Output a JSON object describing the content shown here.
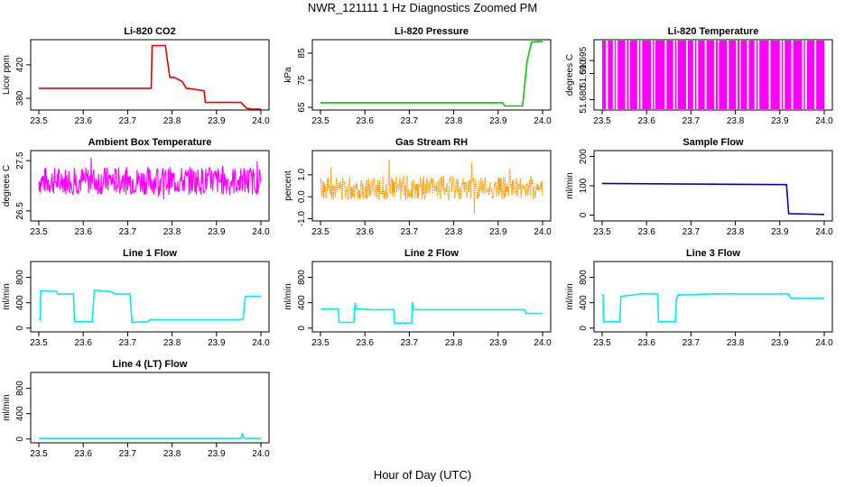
{
  "title": "NWR_121111  1 Hz Diagnostics Zoomed PM",
  "xlabel": "Hour of Day (UTC)",
  "colors": {
    "red": "#ee0000",
    "green": "#00cc00",
    "magenta": "#ff00ff",
    "orange": "#ff9900",
    "blue": "#0000cc",
    "cyan": "#00eeee"
  },
  "chart_data": [
    {
      "type": "line",
      "title": "Li-820 CO2",
      "ylabel": "Licor ppm",
      "color": "red",
      "xlim": [
        23.5,
        24.0
      ],
      "ylim": [
        366,
        450
      ],
      "xticks": [
        "23.5",
        "23.6",
        "23.7",
        "23.8",
        "23.9",
        "24.0"
      ],
      "yticks": [
        {
          "v": 380,
          "t": "380"
        },
        {
          "v": 420,
          "t": "420"
        }
      ],
      "series": [
        {
          "x": [
            23.5,
            23.753,
            23.755,
            23.763,
            23.77,
            23.785,
            23.795,
            23.805,
            23.823,
            23.832,
            23.835,
            23.872,
            23.875,
            23.955,
            23.968,
            23.98,
            24.0
          ],
          "y": [
            392,
            392,
            443,
            443,
            443,
            443,
            405,
            405,
            400,
            392,
            392,
            389,
            375,
            375,
            368,
            367,
            367
          ]
        }
      ]
    },
    {
      "type": "line",
      "title": "Li-820 Pressure",
      "ylabel": "kPa",
      "color": "green",
      "xlim": [
        23.5,
        24.0
      ],
      "ylim": [
        64,
        90
      ],
      "xticks": [
        "23.5",
        "23.6",
        "23.7",
        "23.8",
        "23.9",
        "24.0"
      ],
      "yticks": [
        {
          "v": 65,
          "t": "65"
        },
        {
          "v": 75,
          "t": "75"
        },
        {
          "v": 85,
          "t": "85"
        }
      ],
      "series": [
        {
          "x": [
            23.5,
            23.91,
            23.915,
            23.955,
            23.965,
            23.975,
            23.985,
            24.0
          ],
          "y": [
            66.7,
            66.7,
            65.5,
            65.5,
            82,
            89,
            89.3,
            89.3
          ]
        }
      ]
    },
    {
      "type": "bar",
      "title": "Li-820 Temperature",
      "ylabel": "degrees C",
      "color": "magenta",
      "xlim": [
        23.5,
        24.0
      ],
      "ylim": [
        51.676,
        51.703
      ],
      "xticks": [
        "23.5",
        "23.6",
        "23.7",
        "23.8",
        "23.9",
        "24.0"
      ],
      "yticks": [
        {
          "v": 51.68,
          "t": "51.680"
        },
        {
          "v": 51.69,
          "t": "51.690"
        },
        {
          "v": 51.695,
          "t": "51.695"
        }
      ],
      "bands": [
        [
          23.5,
          23.508
        ],
        [
          23.513,
          23.524
        ],
        [
          23.528,
          23.531
        ],
        [
          23.535,
          23.552
        ],
        [
          23.556,
          23.56
        ],
        [
          23.563,
          23.579
        ],
        [
          23.583,
          23.586
        ],
        [
          23.59,
          23.61
        ],
        [
          23.614,
          23.617
        ],
        [
          23.62,
          23.641
        ],
        [
          23.645,
          23.66
        ],
        [
          23.664,
          23.667
        ],
        [
          23.67,
          23.689
        ],
        [
          23.693,
          23.705
        ],
        [
          23.709,
          23.712
        ],
        [
          23.716,
          23.731
        ],
        [
          23.735,
          23.752
        ],
        [
          23.756,
          23.76
        ],
        [
          23.763,
          23.781
        ],
        [
          23.785,
          23.801
        ],
        [
          23.805,
          23.809
        ],
        [
          23.812,
          23.826
        ],
        [
          23.83,
          23.843
        ],
        [
          23.847,
          23.85
        ],
        [
          23.854,
          23.875
        ],
        [
          23.879,
          23.9
        ],
        [
          23.904,
          23.907
        ],
        [
          23.911,
          23.926
        ],
        [
          23.93,
          23.95
        ],
        [
          23.954,
          23.957
        ],
        [
          23.961,
          23.978
        ],
        [
          23.982,
          24.0
        ]
      ]
    },
    {
      "type": "line",
      "title": "Ambient Box Temperature",
      "ylabel": "degrees C",
      "color": "magenta",
      "xlim": [
        23.5,
        24.0
      ],
      "ylim": [
        26.3,
        27.7
      ],
      "xticks": [
        "23.5",
        "23.6",
        "23.7",
        "23.8",
        "23.9",
        "24.0"
      ],
      "yticks": [
        {
          "v": 26.5,
          "t": "26.5"
        },
        {
          "v": 27.5,
          "t": "27.5"
        }
      ],
      "noise": {
        "center": 27.1,
        "amplitude": 0.28,
        "spike": 0.5,
        "seed": 7
      }
    },
    {
      "type": "line",
      "title": "Gas Stream RH",
      "ylabel": "percent",
      "color": "orange",
      "xlim": [
        23.5,
        24.0
      ],
      "ylim": [
        -1.1,
        2.1
      ],
      "xticks": [
        "23.5",
        "23.6",
        "23.7",
        "23.8",
        "23.9",
        "24.0"
      ],
      "yticks": [
        {
          "v": -1.0,
          "t": "-1.0"
        },
        {
          "v": 0.0,
          "t": "0.0"
        },
        {
          "v": 1.0,
          "t": "1.0"
        }
      ],
      "noise": {
        "center": 0.4,
        "amplitude": 0.55,
        "spike": 1.3,
        "seed": 13
      }
    },
    {
      "type": "line",
      "title": "Sample Flow",
      "ylabel": "ml/min",
      "color": "blue",
      "xlim": [
        23.5,
        24.0
      ],
      "ylim": [
        -20,
        220
      ],
      "xticks": [
        "23.5",
        "23.6",
        "23.7",
        "23.8",
        "23.9",
        "24.0"
      ],
      "yticks": [
        {
          "v": 0,
          "t": "0"
        },
        {
          "v": 100,
          "t": "100"
        },
        {
          "v": 200,
          "t": "200"
        }
      ],
      "series": [
        {
          "x": [
            23.5,
            23.7,
            23.912,
            23.915,
            23.92,
            24.0
          ],
          "y": [
            108,
            106,
            104,
            104,
            5,
            2
          ]
        }
      ]
    },
    {
      "type": "line",
      "title": "Line 1 Flow",
      "ylabel": "ml/min",
      "color": "cyan",
      "xlim": [
        23.5,
        24.0
      ],
      "ylim": [
        -60,
        1050
      ],
      "xticks": [
        "23.5",
        "23.6",
        "23.7",
        "23.8",
        "23.9",
        "24.0"
      ],
      "yticks": [
        {
          "v": 0,
          "t": "0"
        },
        {
          "v": 400,
          "t": "400"
        },
        {
          "v": 800,
          "t": "800"
        }
      ],
      "series": [
        {
          "x": [
            23.5,
            23.503,
            23.504,
            23.54,
            23.542,
            23.578,
            23.58,
            23.62,
            23.625,
            23.665,
            23.67,
            23.705,
            23.71,
            23.745,
            23.75,
            23.955,
            23.96,
            23.965,
            24.0
          ],
          "y": [
            130,
            130,
            590,
            580,
            540,
            540,
            100,
            100,
            600,
            570,
            540,
            540,
            90,
            100,
            130,
            130,
            150,
            500,
            500
          ]
        }
      ]
    },
    {
      "type": "line",
      "title": "Line 2 Flow",
      "ylabel": "ml/min",
      "color": "cyan",
      "xlim": [
        23.5,
        24.0
      ],
      "ylim": [
        -60,
        1050
      ],
      "xticks": [
        "23.5",
        "23.6",
        "23.7",
        "23.8",
        "23.9",
        "24.0"
      ],
      "yticks": [
        {
          "v": 0,
          "t": "0"
        },
        {
          "v": 400,
          "t": "400"
        },
        {
          "v": 800,
          "t": "800"
        }
      ],
      "series": [
        {
          "x": [
            23.5,
            23.54,
            23.542,
            23.575,
            23.578,
            23.58,
            23.62,
            23.665,
            23.667,
            23.705,
            23.707,
            23.71,
            23.96,
            23.962,
            24.0
          ],
          "y": [
            300,
            300,
            90,
            90,
            400,
            300,
            290,
            290,
            80,
            80,
            410,
            290,
            290,
            230,
            230
          ]
        }
      ]
    },
    {
      "type": "line",
      "title": "Line 3 Flow",
      "ylabel": "ml/min",
      "color": "cyan",
      "xlim": [
        23.5,
        24.0
      ],
      "ylim": [
        -60,
        1050
      ],
      "xticks": [
        "23.5",
        "23.6",
        "23.7",
        "23.8",
        "23.9",
        "24.0"
      ],
      "yticks": [
        {
          "v": 0,
          "t": "0"
        },
        {
          "v": 400,
          "t": "400"
        },
        {
          "v": 800,
          "t": "800"
        }
      ],
      "series": [
        {
          "x": [
            23.5,
            23.502,
            23.503,
            23.54,
            23.542,
            23.58,
            23.582,
            23.625,
            23.627,
            23.665,
            23.667,
            23.67,
            23.75,
            23.92,
            23.925,
            24.0
          ],
          "y": [
            520,
            520,
            100,
            100,
            500,
            530,
            540,
            540,
            100,
            100,
            460,
            520,
            540,
            540,
            470,
            470
          ]
        }
      ]
    },
    {
      "type": "line",
      "title": "Line 4 (LT) Flow",
      "ylabel": "ml/min",
      "color": "cyan",
      "xlim": [
        23.5,
        24.0
      ],
      "ylim": [
        -60,
        1050
      ],
      "xticks": [
        "23.5",
        "23.6",
        "23.7",
        "23.8",
        "23.9",
        "24.0"
      ],
      "yticks": [
        {
          "v": 0,
          "t": "0"
        },
        {
          "v": 400,
          "t": "400"
        },
        {
          "v": 800,
          "t": "800"
        }
      ],
      "series": [
        {
          "x": [
            23.5,
            23.955,
            23.958,
            23.962,
            23.966,
            24.0
          ],
          "y": [
            10,
            10,
            80,
            15,
            10,
            10
          ]
        }
      ]
    }
  ]
}
